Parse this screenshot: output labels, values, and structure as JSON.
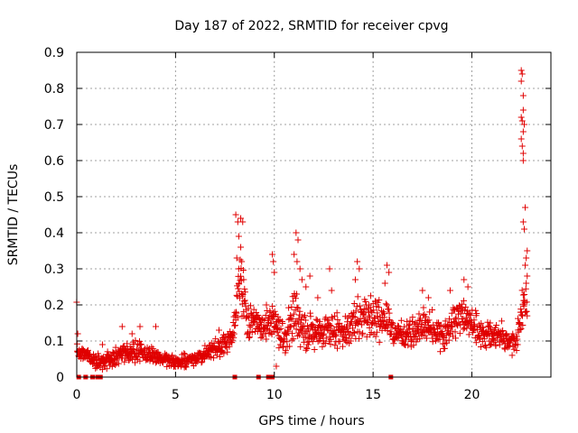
{
  "chart_data": {
    "type": "scatter",
    "title": "Day 187 of 2022, SRMTID for receiver cpvg",
    "xlabel": "GPS time / hours",
    "ylabel": "SRMTID / TECUs",
    "xlim": [
      0,
      24
    ],
    "ylim": [
      0,
      0.9
    ],
    "x_ticks": [
      "0",
      "5",
      "10",
      "15",
      "20"
    ],
    "x_tick_values": [
      0,
      5,
      10,
      15,
      20
    ],
    "y_ticks": [
      "0",
      "0.1",
      "0.2",
      "0.3",
      "0.4",
      "0.5",
      "0.6",
      "0.7",
      "0.8",
      "0.9"
    ],
    "y_tick_values": [
      0,
      0.1,
      0.2,
      0.3,
      0.4,
      0.5,
      0.6,
      0.7,
      0.8,
      0.9
    ],
    "grid": true,
    "marker": "+",
    "series": [
      {
        "name": "SRMTID",
        "color": "#e00000",
        "profile": [
          {
            "x": 0.0,
            "y": 0.07,
            "spread": 0.02
          },
          {
            "x": 0.5,
            "y": 0.06,
            "spread": 0.02
          },
          {
            "x": 1.2,
            "y": 0.04,
            "spread": 0.02
          },
          {
            "x": 2.0,
            "y": 0.06,
            "spread": 0.03
          },
          {
            "x": 3.0,
            "y": 0.07,
            "spread": 0.035
          },
          {
            "x": 4.0,
            "y": 0.055,
            "spread": 0.02
          },
          {
            "x": 5.0,
            "y": 0.04,
            "spread": 0.015
          },
          {
            "x": 6.0,
            "y": 0.05,
            "spread": 0.02
          },
          {
            "x": 7.0,
            "y": 0.08,
            "spread": 0.025
          },
          {
            "x": 7.8,
            "y": 0.1,
            "spread": 0.03
          },
          {
            "x": 8.0,
            "y": 0.15,
            "spread": 0.05
          },
          {
            "x": 8.3,
            "y": 0.28,
            "spread": 0.1
          },
          {
            "x": 8.6,
            "y": 0.16,
            "spread": 0.05
          },
          {
            "x": 9.5,
            "y": 0.14,
            "spread": 0.04
          },
          {
            "x": 10.0,
            "y": 0.15,
            "spread": 0.07
          },
          {
            "x": 10.5,
            "y": 0.1,
            "spread": 0.04
          },
          {
            "x": 11.0,
            "y": 0.18,
            "spread": 0.08
          },
          {
            "x": 11.5,
            "y": 0.13,
            "spread": 0.05
          },
          {
            "x": 12.5,
            "y": 0.12,
            "spread": 0.05
          },
          {
            "x": 13.5,
            "y": 0.13,
            "spread": 0.05
          },
          {
            "x": 14.5,
            "y": 0.17,
            "spread": 0.06
          },
          {
            "x": 15.5,
            "y": 0.16,
            "spread": 0.05
          },
          {
            "x": 16.5,
            "y": 0.11,
            "spread": 0.04
          },
          {
            "x": 17.5,
            "y": 0.14,
            "spread": 0.05
          },
          {
            "x": 18.5,
            "y": 0.12,
            "spread": 0.05
          },
          {
            "x": 19.5,
            "y": 0.17,
            "spread": 0.05
          },
          {
            "x": 20.5,
            "y": 0.12,
            "spread": 0.04
          },
          {
            "x": 21.5,
            "y": 0.11,
            "spread": 0.04
          },
          {
            "x": 22.2,
            "y": 0.09,
            "spread": 0.03
          },
          {
            "x": 22.4,
            "y": 0.15,
            "spread": 0.05
          },
          {
            "x": 22.6,
            "y": 0.2,
            "spread": 0.06
          },
          {
            "x": 22.8,
            "y": 0.2,
            "spread": 0.05
          }
        ],
        "highlight_points": [
          {
            "x": 0.05,
            "y": 0.12
          },
          {
            "x": 1.3,
            "y": 0.09
          },
          {
            "x": 2.3,
            "y": 0.14
          },
          {
            "x": 2.8,
            "y": 0.12
          },
          {
            "x": 3.2,
            "y": 0.14
          },
          {
            "x": 4.0,
            "y": 0.14
          },
          {
            "x": 7.2,
            "y": 0.13
          },
          {
            "x": 8.05,
            "y": 0.45
          },
          {
            "x": 8.15,
            "y": 0.43
          },
          {
            "x": 8.3,
            "y": 0.44
          },
          {
            "x": 8.4,
            "y": 0.43
          },
          {
            "x": 8.2,
            "y": 0.39
          },
          {
            "x": 8.3,
            "y": 0.36
          },
          {
            "x": 8.1,
            "y": 0.33
          },
          {
            "x": 8.35,
            "y": 0.32
          },
          {
            "x": 8.2,
            "y": 0.3
          },
          {
            "x": 8.45,
            "y": 0.27
          },
          {
            "x": 9.6,
            "y": 0.2
          },
          {
            "x": 9.9,
            "y": 0.34
          },
          {
            "x": 9.95,
            "y": 0.32
          },
          {
            "x": 10.0,
            "y": 0.29
          },
          {
            "x": 10.1,
            "y": 0.03
          },
          {
            "x": 11.1,
            "y": 0.4
          },
          {
            "x": 11.2,
            "y": 0.38
          },
          {
            "x": 11.0,
            "y": 0.34
          },
          {
            "x": 11.15,
            "y": 0.32
          },
          {
            "x": 11.3,
            "y": 0.3
          },
          {
            "x": 11.4,
            "y": 0.27
          },
          {
            "x": 11.6,
            "y": 0.25
          },
          {
            "x": 11.8,
            "y": 0.28
          },
          {
            "x": 12.2,
            "y": 0.22
          },
          {
            "x": 12.8,
            "y": 0.3
          },
          {
            "x": 12.9,
            "y": 0.24
          },
          {
            "x": 14.2,
            "y": 0.32
          },
          {
            "x": 14.3,
            "y": 0.3
          },
          {
            "x": 14.1,
            "y": 0.27
          },
          {
            "x": 15.7,
            "y": 0.31
          },
          {
            "x": 15.8,
            "y": 0.29
          },
          {
            "x": 15.6,
            "y": 0.26
          },
          {
            "x": 17.5,
            "y": 0.24
          },
          {
            "x": 17.8,
            "y": 0.22
          },
          {
            "x": 18.9,
            "y": 0.24
          },
          {
            "x": 19.6,
            "y": 0.27
          },
          {
            "x": 19.8,
            "y": 0.25
          },
          {
            "x": 22.5,
            "y": 0.85
          },
          {
            "x": 22.55,
            "y": 0.84
          },
          {
            "x": 22.5,
            "y": 0.82
          },
          {
            "x": 22.6,
            "y": 0.78
          },
          {
            "x": 22.6,
            "y": 0.74
          },
          {
            "x": 22.5,
            "y": 0.72
          },
          {
            "x": 22.55,
            "y": 0.71
          },
          {
            "x": 22.65,
            "y": 0.7
          },
          {
            "x": 22.6,
            "y": 0.68
          },
          {
            "x": 22.5,
            "y": 0.66
          },
          {
            "x": 22.55,
            "y": 0.64
          },
          {
            "x": 22.6,
            "y": 0.62
          },
          {
            "x": 22.6,
            "y": 0.6
          },
          {
            "x": 22.7,
            "y": 0.47
          },
          {
            "x": 22.6,
            "y": 0.43
          },
          {
            "x": 22.65,
            "y": 0.41
          },
          {
            "x": 22.8,
            "y": 0.35
          },
          {
            "x": 22.75,
            "y": 0.33
          },
          {
            "x": 22.7,
            "y": 0.31
          },
          {
            "x": 22.8,
            "y": 0.28
          },
          {
            "x": 22.75,
            "y": 0.26
          }
        ],
        "zero_points": [
          0.1,
          0.45,
          0.8,
          1.05,
          1.2,
          8.0,
          9.2,
          9.7,
          9.9,
          15.9
        ]
      }
    ]
  }
}
